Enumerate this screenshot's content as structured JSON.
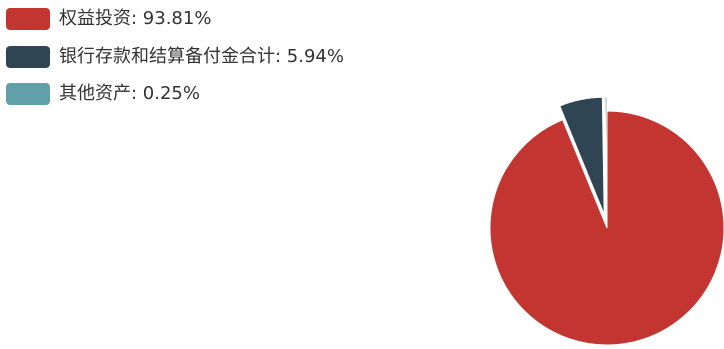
{
  "chart_data": {
    "type": "pie",
    "title": "",
    "slices": [
      {
        "name": "权益投资",
        "label": "权益投资: 93.81%",
        "value": 93.81,
        "color": "#c23531",
        "exploded": false
      },
      {
        "name": "银行存款和结算备付金合计",
        "label": "银行存款和结算备付金合计: 5.94%",
        "value": 5.94,
        "color": "#2f4554",
        "exploded": true
      },
      {
        "name": "其他资产",
        "label": "其他资产: 0.25%",
        "value": 0.25,
        "color": "#61a0a8",
        "exploded": true
      }
    ],
    "legend_position": "top-left",
    "start_angle_deg": 90,
    "direction": "clockwise"
  }
}
